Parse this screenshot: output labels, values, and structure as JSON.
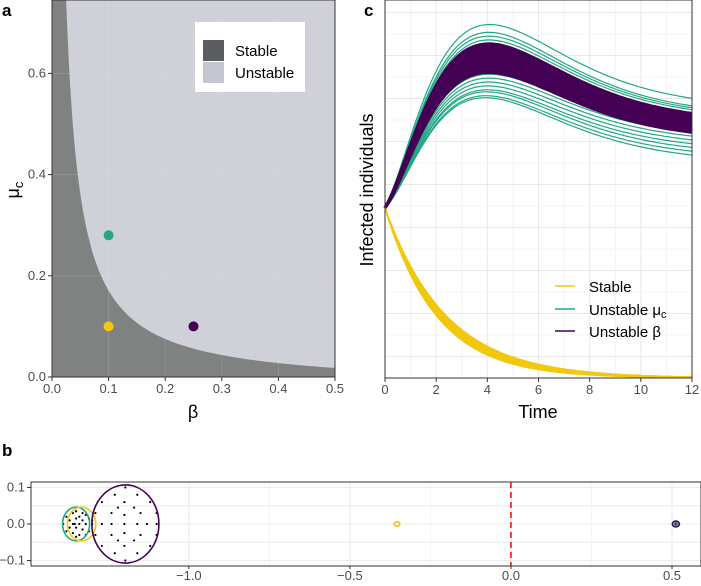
{
  "chart_data": [
    {
      "panel": "a",
      "type": "area",
      "xlabel": "β",
      "ylabel": "μ",
      "ylabel_sub": "c",
      "xlim": [
        0,
        0.5
      ],
      "ylim": [
        0,
        0.745
      ],
      "xticks": [
        "0.0",
        "0.1",
        "0.2",
        "0.3",
        "0.4",
        "0.5"
      ],
      "yticks": [
        "0.0",
        "0.2",
        "0.4",
        "0.6"
      ],
      "boundary": {
        "formula": "mu_c = 0.0191/beta - 0.0203",
        "a": 0.0191,
        "c": 0.0203
      },
      "legend": {
        "placement": "top-right",
        "items": [
          {
            "label": "Stable",
            "color": "#5b5d60"
          },
          {
            "label": "Unstable",
            "color": "#c5c6d1"
          }
        ]
      },
      "region_colors": {
        "stable": "#808282",
        "unstable": "#cfd0d8"
      },
      "points": [
        {
          "name": "stable",
          "beta": 0.1,
          "mu_c": 0.1,
          "color": "#f2c80f"
        },
        {
          "name": "unstable-mu",
          "beta": 0.1,
          "mu_c": 0.28,
          "color": "#22a884"
        },
        {
          "name": "unstable-beta",
          "beta": 0.25,
          "mu_c": 0.1,
          "color": "#440154"
        }
      ]
    },
    {
      "panel": "b",
      "type": "scatter",
      "xlim": [
        -1.49,
        0.59
      ],
      "ylim": [
        -0.115,
        0.115
      ],
      "xticks": [
        "-1.0",
        "-0.5",
        "0.0",
        "0.5"
      ],
      "xtick_values": [
        -1.0,
        -0.5,
        0.0,
        0.5
      ],
      "yticks": [
        "0.1",
        "0.0",
        "-0.1"
      ],
      "ytick_values": [
        0.1,
        0.0,
        -0.1
      ],
      "vline": {
        "x": 0.0,
        "color": "#ff0000",
        "style": "dashed"
      },
      "ellipses": [
        {
          "name": "unstable-mu",
          "cx": -1.35,
          "cy": 0,
          "rx": 0.042,
          "ry": 0.046,
          "color": "#22a884"
        },
        {
          "name": "stable",
          "cx": -1.333,
          "cy": 0,
          "rx": 0.044,
          "ry": 0.046,
          "color": "#f2c80f"
        },
        {
          "name": "unstable-beta",
          "cx": -1.197,
          "cy": 0,
          "rx": 0.104,
          "ry": 0.107,
          "color": "#440154"
        },
        {
          "name": "stable-outlier",
          "cx": -0.354,
          "cy": 0,
          "rx": 0.009,
          "ry": 0.006,
          "color": "#f2c80f"
        },
        {
          "name": "unstable-beta-outlier",
          "cx": 0.512,
          "cy": 0,
          "rx": 0.011,
          "ry": 0.008,
          "color": "#440154"
        },
        {
          "name": "unstable-mu-outlier",
          "cx": 0.512,
          "cy": 0,
          "rx": 0.005,
          "ry": 0.004,
          "color": "#22a884"
        }
      ],
      "eigenvalues": [
        [
          -1.197,
          0.1
        ],
        [
          -1.23,
          0.08
        ],
        [
          -1.16,
          0.08
        ],
        [
          -1.27,
          0.06
        ],
        [
          -1.12,
          0.06
        ],
        [
          -1.2,
          0.06
        ],
        [
          -1.22,
          0.045
        ],
        [
          -1.17,
          0.045
        ],
        [
          -1.29,
          0.03
        ],
        [
          -1.24,
          0.03
        ],
        [
          -1.15,
          0.03
        ],
        [
          -1.1,
          0.03
        ],
        [
          -1.2,
          0.025
        ],
        [
          -1.3,
          0
        ],
        [
          -1.27,
          0
        ],
        [
          -1.24,
          0
        ],
        [
          -1.2,
          0
        ],
        [
          -1.16,
          0
        ],
        [
          -1.13,
          0
        ],
        [
          -1.1,
          0
        ],
        [
          -1.2,
          -0.025
        ],
        [
          -1.29,
          -0.03
        ],
        [
          -1.24,
          -0.03
        ],
        [
          -1.15,
          -0.03
        ],
        [
          -1.1,
          -0.03
        ],
        [
          -1.22,
          -0.045
        ],
        [
          -1.17,
          -0.045
        ],
        [
          -1.27,
          -0.06
        ],
        [
          -1.12,
          -0.06
        ],
        [
          -1.2,
          -0.06
        ],
        [
          -1.23,
          -0.08
        ],
        [
          -1.16,
          -0.08
        ],
        [
          -1.197,
          -0.1
        ],
        [
          -1.38,
          0.02
        ],
        [
          -1.37,
          0.01
        ],
        [
          -1.36,
          0.0
        ],
        [
          -1.35,
          -0.01
        ],
        [
          -1.34,
          0.02
        ],
        [
          -1.33,
          0.01
        ],
        [
          -1.32,
          0
        ],
        [
          -1.31,
          -0.02
        ],
        [
          -1.38,
          -0.02
        ],
        [
          -1.36,
          0.03
        ],
        [
          -1.35,
          0.015
        ],
        [
          -1.34,
          -0.03
        ],
        [
          -1.33,
          -0.015
        ],
        [
          -1.32,
          0.025
        ],
        [
          -1.3,
          0.01
        ],
        [
          -1.37,
          -0.01
        ],
        [
          -1.36,
          -0.025
        ],
        [
          -1.35,
          0.035
        ],
        [
          -1.34,
          0
        ],
        [
          -1.33,
          0.03
        ],
        [
          -1.31,
          0.015
        ],
        [
          -1.39,
          0
        ],
        [
          -1.32,
          -0.03
        ],
        [
          -1.35,
          -0.035
        ],
        [
          -1.354,
          0.0
        ],
        [
          0.512,
          0.0
        ]
      ]
    },
    {
      "panel": "c",
      "type": "line",
      "xlabel": "Time",
      "ylabel": "Infected individuals",
      "xlim": [
        0,
        12
      ],
      "ylim": [
        0,
        1
      ],
      "xticks": [
        "0",
        "2",
        "4",
        "6",
        "8",
        "10",
        "12"
      ],
      "initial_value": 0.45,
      "legend": {
        "placement": "bottom-right",
        "items": [
          {
            "label": "Stable",
            "color": "#f2c80f"
          },
          {
            "label": "Unstable μ",
            "sub": "c",
            "color": "#22a884"
          },
          {
            "label": "Unstable β",
            "color": "#440154"
          }
        ]
      },
      "series": [
        {
          "name": "Stable",
          "color": "#f2c80f",
          "decay_rates": [
            0.42,
            0.43,
            0.44,
            0.45,
            0.46,
            0.47,
            0.48,
            0.49,
            0.5
          ]
        },
        {
          "name": "Unstable μc",
          "color": "#22a884",
          "curves_peak_end": [
            [
              0.93,
              0.74
            ],
            [
              0.91,
              0.72
            ],
            [
              0.9,
              0.715
            ],
            [
              0.89,
              0.71
            ],
            [
              0.87,
              0.7
            ],
            [
              0.86,
              0.695
            ],
            [
              0.8,
              0.66
            ],
            [
              0.79,
              0.65
            ],
            [
              0.78,
              0.64
            ],
            [
              0.77,
              0.63
            ],
            [
              0.76,
              0.62
            ],
            [
              0.755,
              0.61
            ],
            [
              0.745,
              0.6
            ],
            [
              0.74,
              0.59
            ]
          ]
        },
        {
          "name": "Unstable β",
          "color": "#440154",
          "curves_peak_end": [
            [
              0.88,
              0.7
            ],
            [
              0.875,
              0.698
            ],
            [
              0.87,
              0.695
            ],
            [
              0.865,
              0.692
            ],
            [
              0.86,
              0.69
            ],
            [
              0.855,
              0.688
            ],
            [
              0.85,
              0.685
            ],
            [
              0.845,
              0.682
            ],
            [
              0.84,
              0.68
            ],
            [
              0.835,
              0.677
            ],
            [
              0.83,
              0.674
            ],
            [
              0.825,
              0.671
            ],
            [
              0.82,
              0.668
            ],
            [
              0.815,
              0.664
            ],
            [
              0.81,
              0.66
            ],
            [
              0.805,
              0.655
            ],
            [
              0.81,
              0.65
            ]
          ]
        }
      ]
    }
  ],
  "labels": {
    "a": "a",
    "b": "b",
    "c": "c"
  }
}
